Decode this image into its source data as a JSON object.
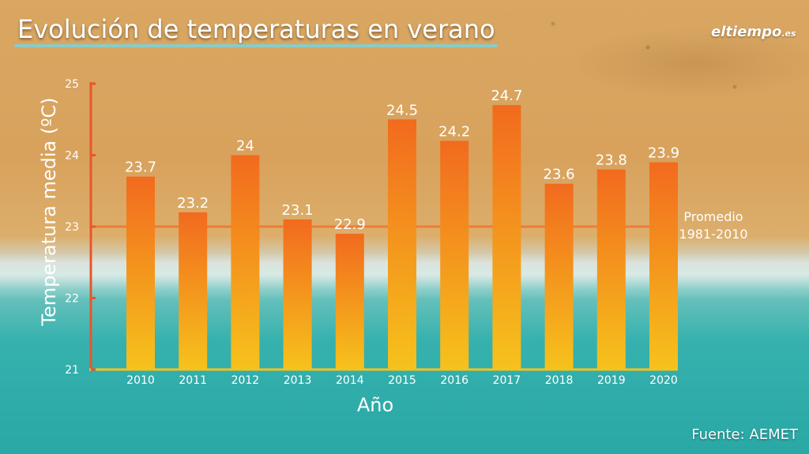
{
  "header": {
    "title": "Evolución de temperaturas en verano",
    "logo": "eltiempo",
    "logo_suffix": ".es"
  },
  "footer": {
    "source": "Fuente: AEMET"
  },
  "colors": {
    "axis": "#e8562a",
    "average_line": "#ef7c35",
    "bar_top": "#f26a1e",
    "bar_bottom": "#f6c21c",
    "text": "#ffffff"
  },
  "chart_data": {
    "type": "bar",
    "title": "Evolución de temperaturas en verano",
    "xlabel": "Año",
    "ylabel": "Temperatura media (ºC)",
    "ylim": [
      21,
      25
    ],
    "yticks": [
      21,
      22,
      23,
      24,
      25
    ],
    "categories": [
      "2010",
      "2011",
      "2012",
      "2013",
      "2014",
      "2015",
      "2016",
      "2017",
      "2018",
      "2019",
      "2020"
    ],
    "values": [
      23.7,
      23.2,
      24,
      23.1,
      22.9,
      24.5,
      24.2,
      24.7,
      23.6,
      23.8,
      23.9
    ],
    "value_labels": [
      "23.7",
      "23.2",
      "24",
      "23.1",
      "22.9",
      "24.5",
      "24.2",
      "24.7",
      "23.6",
      "23.8",
      "23.9"
    ],
    "reference_line": {
      "value": 23,
      "label_line1": "Promedio",
      "label_line2": "1981-2010"
    },
    "grid": false,
    "legend": "none"
  }
}
